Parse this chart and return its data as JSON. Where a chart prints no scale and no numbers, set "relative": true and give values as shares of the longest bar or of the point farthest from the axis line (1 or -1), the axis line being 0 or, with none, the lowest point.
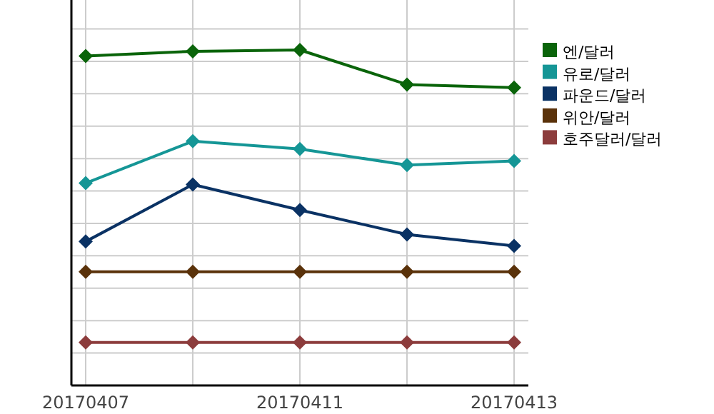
{
  "chart_data": {
    "type": "line",
    "relative": true,
    "grid": true,
    "legend": "right",
    "marker": "diamond",
    "line_style": "solid",
    "categories": [
      "20170407",
      null,
      "20170411",
      null,
      "20170413"
    ],
    "series": [
      {
        "name": "엔/달러",
        "color": "#0a640a",
        "values": [
          0.982,
          0.996,
          1,
          0.897,
          0.888
        ]
      },
      {
        "name": "유로/달러",
        "color": "#159696",
        "values": [
          0.603,
          0.728,
          0.705,
          0.657,
          0.669
        ]
      },
      {
        "name": "파운드/달러",
        "color": "#0a3264",
        "values": [
          0.429,
          0.599,
          0.523,
          0.45,
          0.416
        ]
      },
      {
        "name": "위안/달러",
        "color": "#5a320a",
        "values": [
          0.339,
          0.339,
          0.339,
          0.339,
          0.339
        ]
      },
      {
        "name": "호주달러/달러",
        "color": "#8c3c3c",
        "values": [
          0.128,
          0.128,
          0.128,
          0.128,
          0.128
        ]
      }
    ]
  }
}
